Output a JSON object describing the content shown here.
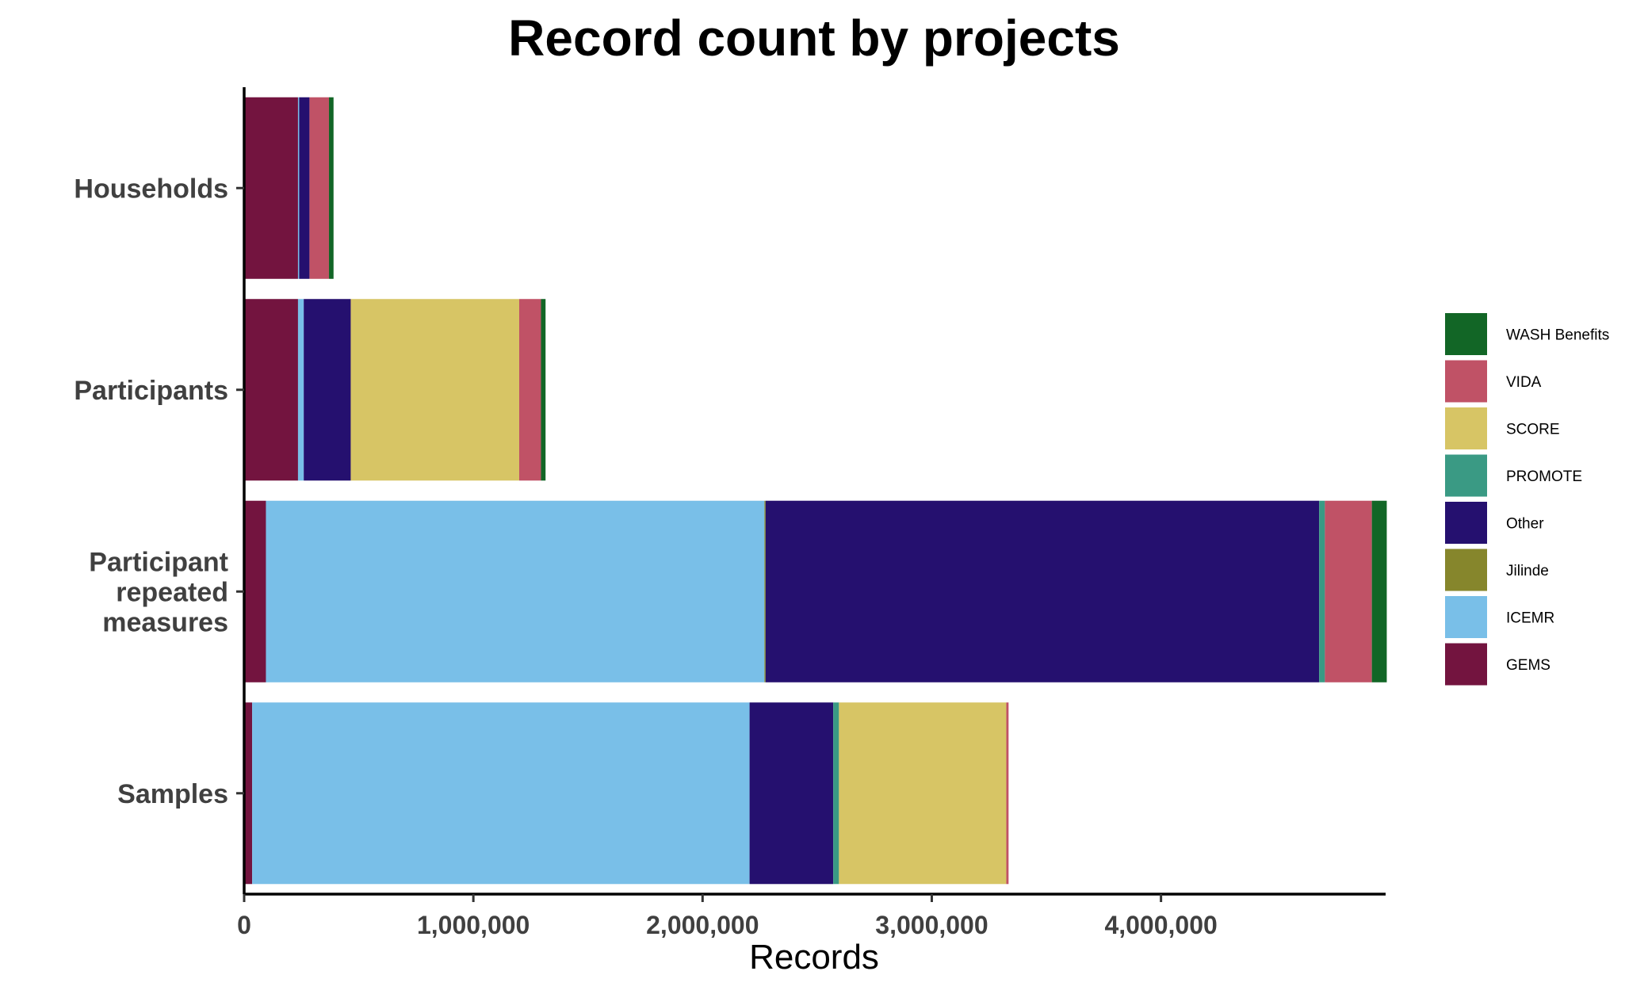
{
  "chart_data": {
    "type": "bar",
    "orientation": "horizontal",
    "stacked": true,
    "title": "Record count by projects",
    "xlabel": "Records",
    "ylabel": "",
    "xlim": [
      0,
      4980000
    ],
    "x_ticks": [
      0,
      1000000,
      2000000,
      3000000,
      4000000
    ],
    "x_tick_labels": [
      "0",
      "1,000,000",
      "2,000,000",
      "3,000,000",
      "4,000,000"
    ],
    "grid": false,
    "legend_position": "right",
    "categories": [
      "Households",
      "Participants",
      "Participant repeated measures",
      "Samples"
    ],
    "category_labels": [
      [
        "Households"
      ],
      [
        "Participants"
      ],
      [
        "Participant",
        "repeated",
        "measures"
      ],
      [
        "Samples"
      ]
    ],
    "series": [
      {
        "name": "GEMS",
        "color": "#73143F",
        "values": [
          235000,
          235000,
          95000,
          35000
        ]
      },
      {
        "name": "ICEMR",
        "color": "#79BFE8",
        "values": [
          5000,
          25000,
          2175000,
          2170000
        ]
      },
      {
        "name": "Jilinde",
        "color": "#86862C",
        "values": [
          0,
          0,
          5000,
          0
        ]
      },
      {
        "name": "Other",
        "color": "#25106F",
        "values": [
          45000,
          205000,
          2415000,
          365000
        ]
      },
      {
        "name": "PROMOTE",
        "color": "#3A9A84",
        "values": [
          0,
          0,
          25000,
          25000
        ]
      },
      {
        "name": "SCORE",
        "color": "#D7C565",
        "values": [
          0,
          735000,
          0,
          730000
        ]
      },
      {
        "name": "VIDA",
        "color": "#C05266",
        "values": [
          85000,
          95000,
          205000,
          10000
        ]
      },
      {
        "name": "WASH Benefits",
        "color": "#126626",
        "values": [
          20000,
          20000,
          65000,
          0
        ]
      }
    ],
    "legend_order": [
      "WASH Benefits",
      "VIDA",
      "SCORE",
      "PROMOTE",
      "Other",
      "Jilinde",
      "ICEMR",
      "GEMS"
    ]
  }
}
